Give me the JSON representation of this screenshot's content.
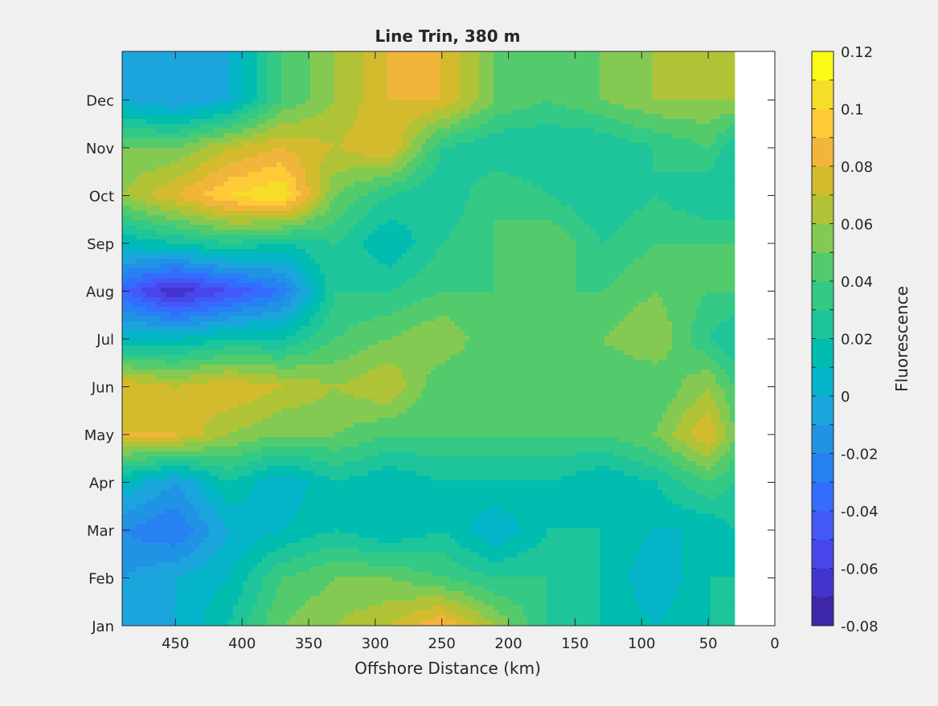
{
  "chart_data": {
    "type": "heatmap",
    "subtype": "filled-contour",
    "title": "Line Trin, 380 m",
    "xlabel": "Offshore Distance (km)",
    "ylabel": "",
    "x_direction": "reversed",
    "xlim": [
      0,
      490
    ],
    "x_ticks": [
      450,
      400,
      350,
      300,
      250,
      200,
      150,
      100,
      50,
      0
    ],
    "x_data_range": [
      30,
      490
    ],
    "y_ticks": [
      "Jan",
      "Feb",
      "Mar",
      "Apr",
      "May",
      "Jun",
      "Jul",
      "Aug",
      "Sep",
      "Oct",
      "Nov",
      "Dec"
    ],
    "grid": false,
    "colorbar": {
      "label": "Fluorescence",
      "range": [
        -0.08,
        0.12
      ],
      "step": 0.01,
      "tick_values": [
        -0.08,
        -0.06,
        -0.04,
        -0.02,
        0,
        0.02,
        0.04,
        0.06,
        0.08,
        0.1,
        0.12
      ],
      "tick_labels": [
        "-0.08",
        "-0.06",
        "-0.04",
        "-0.02",
        "0",
        "0.02",
        "0.04",
        "0.06",
        "0.08",
        "0.1",
        "0.12"
      ],
      "colors": [
        "#3e26a8",
        "#4434ce",
        "#4746ea",
        "#4259f8",
        "#346dfd",
        "#2781f2",
        "#2193e4",
        "#1ca5dd",
        "#06b4ca",
        "#00bdb0",
        "#1ec59a",
        "#35c986",
        "#53cb6d",
        "#84ca52",
        "#b0c336",
        "#d3bb2d",
        "#f2b53b",
        "#feca36",
        "#f5dd28",
        "#f9fb14"
      ]
    },
    "months": [
      "Jan",
      "Feb",
      "Mar",
      "Apr",
      "May",
      "Jun",
      "Jul",
      "Aug",
      "Sep",
      "Oct",
      "Nov",
      "Dec"
    ],
    "x_grid_km": [
      490,
      450,
      410,
      370,
      330,
      290,
      250,
      210,
      170,
      130,
      90,
      50,
      30
    ],
    "values": [
      [
        -0.01,
        0.0,
        0.02,
        0.05,
        0.06,
        0.07,
        0.09,
        0.06,
        0.03,
        0.02,
        0.01,
        0.02,
        0.02
      ],
      [
        -0.01,
        0.0,
        0.01,
        0.04,
        0.05,
        0.05,
        0.04,
        0.03,
        0.03,
        0.02,
        0.0,
        0.02,
        0.02
      ],
      [
        -0.02,
        -0.03,
        0.0,
        0.01,
        0.02,
        0.01,
        0.02,
        0.0,
        0.02,
        0.02,
        0.01,
        0.01,
        0.02
      ],
      [
        0.01,
        -0.01,
        0.02,
        0.0,
        0.02,
        0.01,
        0.02,
        0.02,
        0.02,
        0.01,
        0.02,
        0.04,
        0.03
      ],
      [
        0.08,
        0.08,
        0.06,
        0.05,
        0.05,
        0.04,
        0.04,
        0.04,
        0.04,
        0.04,
        0.05,
        0.08,
        0.05
      ],
      [
        0.08,
        0.07,
        0.08,
        0.07,
        0.06,
        0.07,
        0.04,
        0.04,
        0.04,
        0.04,
        0.04,
        0.06,
        0.04
      ],
      [
        0.01,
        0.01,
        0.02,
        0.02,
        0.04,
        0.05,
        0.06,
        0.04,
        0.04,
        0.05,
        0.06,
        0.03,
        0.02
      ],
      [
        -0.04,
        -0.07,
        -0.05,
        -0.03,
        0.03,
        0.03,
        0.04,
        0.04,
        0.04,
        0.04,
        0.05,
        0.04,
        0.04
      ],
      [
        0.01,
        0.02,
        0.03,
        0.02,
        0.03,
        0.01,
        0.03,
        0.04,
        0.05,
        0.03,
        0.04,
        0.04,
        0.04
      ],
      [
        0.06,
        0.08,
        0.1,
        0.11,
        0.05,
        0.03,
        0.02,
        0.04,
        0.03,
        0.02,
        0.03,
        0.02,
        0.02
      ],
      [
        0.05,
        0.05,
        0.07,
        0.08,
        0.07,
        0.08,
        0.03,
        0.02,
        0.02,
        0.02,
        0.03,
        0.04,
        0.02
      ],
      [
        0.0,
        -0.01,
        0.0,
        0.04,
        0.06,
        0.08,
        0.08,
        0.05,
        0.04,
        0.05,
        0.06,
        0.06,
        0.06
      ]
    ]
  }
}
